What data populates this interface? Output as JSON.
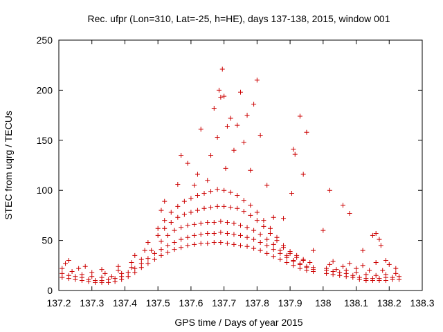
{
  "chart_data": {
    "type": "scatter",
    "title": "Rec. ufpr (Lon=310, Lat=-25, h=HE), days 137-138, 2015, window 001",
    "xlabel": "GPS time / Days of year 2015",
    "ylabel": "STEC from uqrg / TECUs",
    "xlim": [
      137.2,
      138.3
    ],
    "ylim": [
      0,
      250
    ],
    "xticks": [
      "137.2",
      "137.3",
      "137.4",
      "137.5",
      "137.6",
      "137.7",
      "137.8",
      "137.9",
      "138",
      "138.1",
      "138.2",
      "138.3"
    ],
    "xtick_values": [
      137.2,
      137.3,
      137.4,
      137.5,
      137.6,
      137.7,
      137.8,
      137.9,
      138.0,
      138.1,
      138.2,
      138.3
    ],
    "yticks": [
      "0",
      "50",
      "100",
      "150",
      "200",
      "250"
    ],
    "ytick_values": [
      0,
      50,
      100,
      150,
      200,
      250
    ],
    "grid": false,
    "legend": "none",
    "marker": "+",
    "color": "#cc0000",
    "series": [
      {
        "values": [
          [
            137.21,
            13
          ],
          [
            137.23,
            12
          ],
          [
            137.25,
            11
          ],
          [
            137.27,
            10
          ],
          [
            137.29,
            9
          ],
          [
            137.31,
            8
          ],
          [
            137.33,
            8
          ],
          [
            137.35,
            8
          ],
          [
            137.37,
            9
          ],
          [
            137.39,
            11
          ],
          [
            137.41,
            14
          ],
          [
            137.43,
            18
          ],
          [
            137.45,
            23
          ],
          [
            137.47,
            27
          ],
          [
            137.49,
            31
          ],
          [
            137.51,
            35
          ],
          [
            137.53,
            38
          ],
          [
            137.55,
            41
          ],
          [
            137.57,
            43
          ],
          [
            137.59,
            45
          ],
          [
            137.61,
            46
          ],
          [
            137.63,
            47
          ],
          [
            137.65,
            47
          ],
          [
            137.67,
            48
          ],
          [
            137.69,
            48
          ],
          [
            137.71,
            47
          ],
          [
            137.73,
            46
          ],
          [
            137.75,
            45
          ],
          [
            137.77,
            44
          ],
          [
            137.79,
            42
          ],
          [
            137.81,
            40
          ],
          [
            137.83,
            37
          ],
          [
            137.85,
            34
          ],
          [
            137.87,
            31
          ],
          [
            137.89,
            28
          ],
          [
            137.91,
            25
          ],
          [
            137.93,
            22
          ],
          [
            137.95,
            20
          ],
          [
            137.97,
            19
          ],
          [
            138.01,
            17
          ],
          [
            138.03,
            16
          ],
          [
            138.05,
            15
          ],
          [
            138.07,
            14
          ],
          [
            138.09,
            13
          ],
          [
            138.11,
            11
          ],
          [
            138.13,
            10
          ],
          [
            138.15,
            10
          ],
          [
            138.17,
            10
          ],
          [
            138.19,
            10
          ],
          [
            138.21,
            11
          ],
          [
            138.23,
            11
          ]
        ]
      },
      {
        "values": [
          [
            137.21,
            17
          ],
          [
            137.23,
            15
          ],
          [
            137.25,
            14
          ],
          [
            137.27,
            13
          ],
          [
            137.29,
            11
          ],
          [
            137.31,
            10
          ],
          [
            137.33,
            10
          ],
          [
            137.35,
            11
          ],
          [
            137.37,
            12
          ],
          [
            137.39,
            14
          ],
          [
            137.41,
            18
          ],
          [
            137.43,
            22
          ],
          [
            137.45,
            27
          ],
          [
            137.47,
            32
          ],
          [
            137.49,
            37
          ],
          [
            137.51,
            41
          ],
          [
            137.53,
            45
          ],
          [
            137.55,
            48
          ],
          [
            137.57,
            51
          ],
          [
            137.59,
            53
          ],
          [
            137.61,
            55
          ],
          [
            137.63,
            56
          ],
          [
            137.65,
            57
          ],
          [
            137.67,
            57
          ],
          [
            137.69,
            58
          ],
          [
            137.71,
            57
          ],
          [
            137.73,
            56
          ],
          [
            137.75,
            55
          ],
          [
            137.77,
            53
          ],
          [
            137.79,
            51
          ],
          [
            137.81,
            48
          ],
          [
            137.83,
            45
          ],
          [
            137.85,
            41
          ],
          [
            137.87,
            37
          ],
          [
            137.89,
            33
          ],
          [
            137.91,
            29
          ],
          [
            137.93,
            26
          ],
          [
            137.95,
            23
          ],
          [
            137.97,
            21
          ],
          [
            138.01,
            20
          ],
          [
            138.03,
            19
          ],
          [
            138.05,
            18
          ],
          [
            138.07,
            17
          ],
          [
            138.09,
            15
          ],
          [
            138.11,
            13
          ],
          [
            138.13,
            12
          ],
          [
            138.15,
            12
          ],
          [
            138.17,
            12
          ],
          [
            138.19,
            13
          ],
          [
            138.21,
            13
          ],
          [
            138.23,
            14
          ]
        ]
      },
      {
        "values": [
          [
            137.21,
            22
          ],
          [
            137.24,
            19
          ],
          [
            137.27,
            16
          ],
          [
            137.3,
            14
          ],
          [
            137.33,
            13
          ],
          [
            137.36,
            14
          ],
          [
            137.39,
            17
          ],
          [
            137.42,
            23
          ],
          [
            137.45,
            31
          ],
          [
            137.48,
            40
          ],
          [
            137.51,
            49
          ],
          [
            137.53,
            55
          ],
          [
            137.55,
            60
          ],
          [
            137.57,
            63
          ],
          [
            137.59,
            65
          ],
          [
            137.61,
            66
          ],
          [
            137.63,
            67
          ],
          [
            137.65,
            68
          ],
          [
            137.67,
            68
          ],
          [
            137.69,
            69
          ],
          [
            137.71,
            68
          ],
          [
            137.73,
            67
          ],
          [
            137.75,
            65
          ],
          [
            137.77,
            63
          ],
          [
            137.79,
            60
          ],
          [
            137.81,
            56
          ],
          [
            137.83,
            51
          ],
          [
            137.85,
            46
          ],
          [
            137.87,
            40
          ],
          [
            137.89,
            35
          ],
          [
            137.91,
            30
          ],
          [
            137.93,
            27
          ],
          [
            137.95,
            24
          ],
          [
            137.97,
            23
          ],
          [
            138.01,
            22
          ],
          [
            138.04,
            21
          ],
          [
            138.07,
            20
          ],
          [
            138.1,
            18
          ],
          [
            138.13,
            16
          ],
          [
            138.16,
            15
          ],
          [
            138.19,
            16
          ],
          [
            138.22,
            17
          ]
        ]
      },
      {
        "values": [
          [
            137.22,
            27
          ],
          [
            137.26,
            22
          ],
          [
            137.3,
            18
          ],
          [
            137.34,
            17
          ],
          [
            137.38,
            20
          ],
          [
            137.42,
            28
          ],
          [
            137.46,
            40
          ],
          [
            137.5,
            55
          ],
          [
            137.52,
            62
          ],
          [
            137.54,
            68
          ],
          [
            137.56,
            73
          ],
          [
            137.58,
            76
          ],
          [
            137.6,
            78
          ],
          [
            137.62,
            80
          ],
          [
            137.64,
            82
          ],
          [
            137.66,
            83
          ],
          [
            137.68,
            84
          ],
          [
            137.7,
            84
          ],
          [
            137.72,
            83
          ],
          [
            137.74,
            82
          ],
          [
            137.76,
            79
          ],
          [
            137.78,
            75
          ],
          [
            137.8,
            70
          ],
          [
            137.82,
            64
          ],
          [
            137.84,
            57
          ],
          [
            137.86,
            50
          ],
          [
            137.88,
            43
          ],
          [
            137.9,
            37
          ],
          [
            137.92,
            33
          ],
          [
            137.94,
            30
          ],
          [
            137.96,
            28
          ],
          [
            138.02,
            26
          ],
          [
            138.06,
            24
          ],
          [
            138.1,
            22
          ],
          [
            138.14,
            20
          ],
          [
            138.18,
            20
          ],
          [
            138.22,
            22
          ]
        ]
      },
      {
        "values": [
          [
            137.23,
            30
          ],
          [
            137.28,
            24
          ],
          [
            137.33,
            21
          ],
          [
            137.38,
            24
          ],
          [
            137.43,
            35
          ],
          [
            137.47,
            48
          ],
          [
            137.5,
            62
          ],
          [
            137.52,
            70
          ],
          [
            137.54,
            78
          ],
          [
            137.56,
            84
          ],
          [
            137.58,
            89
          ],
          [
            137.6,
            92
          ],
          [
            137.62,
            95
          ],
          [
            137.64,
            97
          ],
          [
            137.66,
            99
          ],
          [
            137.68,
            101
          ],
          [
            137.7,
            100
          ],
          [
            137.72,
            98
          ],
          [
            137.74,
            95
          ],
          [
            137.76,
            90
          ],
          [
            137.78,
            85
          ],
          [
            137.8,
            78
          ],
          [
            137.82,
            70
          ],
          [
            137.84,
            62
          ],
          [
            137.86,
            53
          ],
          [
            137.88,
            45
          ],
          [
            137.9,
            39
          ],
          [
            137.92,
            35
          ],
          [
            137.94,
            31
          ],
          [
            138.03,
            29
          ],
          [
            138.08,
            27
          ],
          [
            138.12,
            25
          ],
          [
            138.16,
            28
          ],
          [
            138.2,
            26
          ]
        ]
      },
      {
        "values": [
          [
            137.51,
            80
          ],
          [
            137.52,
            89
          ],
          [
            137.56,
            106
          ],
          [
            137.57,
            135
          ],
          [
            137.59,
            127
          ],
          [
            137.61,
            105
          ],
          [
            137.62,
            116
          ],
          [
            137.63,
            161
          ],
          [
            137.65,
            110
          ],
          [
            137.66,
            135
          ],
          [
            137.67,
            182
          ],
          [
            137.68,
            153
          ],
          [
            137.685,
            200
          ],
          [
            137.69,
            193
          ],
          [
            137.695,
            221
          ],
          [
            137.7,
            194
          ],
          [
            137.705,
            122
          ],
          [
            137.71,
            164
          ],
          [
            137.72,
            172
          ],
          [
            137.73,
            140
          ],
          [
            137.74,
            165
          ],
          [
            137.75,
            198
          ],
          [
            137.76,
            148
          ],
          [
            137.77,
            175
          ],
          [
            137.78,
            120
          ],
          [
            137.79,
            186
          ],
          [
            137.8,
            210
          ],
          [
            137.81,
            155
          ],
          [
            137.83,
            105
          ],
          [
            137.85,
            73
          ],
          [
            137.88,
            72
          ],
          [
            137.905,
            97
          ],
          [
            137.91,
            141
          ],
          [
            137.915,
            136
          ],
          [
            137.93,
            174
          ],
          [
            137.94,
            116
          ],
          [
            137.95,
            158
          ],
          [
            137.97,
            40
          ],
          [
            138.0,
            60
          ],
          [
            138.02,
            100
          ],
          [
            138.06,
            85
          ],
          [
            138.08,
            77
          ],
          [
            138.12,
            40
          ],
          [
            138.15,
            55
          ],
          [
            138.16,
            57
          ],
          [
            138.17,
            51
          ],
          [
            138.175,
            45
          ],
          [
            138.19,
            30
          ]
        ]
      }
    ]
  }
}
